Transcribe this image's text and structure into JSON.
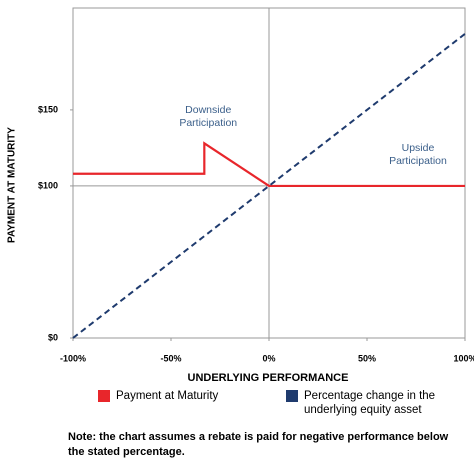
{
  "chart_data": {
    "type": "line",
    "x_label": "UNDERLYING PERFORMANCE",
    "y_label": "PAYMENT AT MATURITY",
    "xlim": [
      -100,
      100
    ],
    "ylim": [
      0,
      217
    ],
    "xticks": [
      {
        "value": -100,
        "label": "-100%"
      },
      {
        "value": -50,
        "label": "-50%"
      },
      {
        "value": 0,
        "label": "0%"
      },
      {
        "value": 50,
        "label": "50%"
      },
      {
        "value": 100,
        "label": "100%"
      }
    ],
    "yticks": [
      {
        "value": 0,
        "label": "$0"
      },
      {
        "value": 100,
        "label": "$100"
      },
      {
        "value": 150,
        "label": "$150"
      }
    ],
    "reference_lines": {
      "x": 0,
      "y": 100
    },
    "series": [
      {
        "name": "Payment at Maturity",
        "color": "#e8262b",
        "style": "solid",
        "x": [
          -100,
          -33,
          -33,
          0,
          100
        ],
        "values": [
          108,
          108,
          128,
          100,
          100
        ]
      },
      {
        "name": "Percentage change in the underlying equity asset",
        "color": "#1f3b6e",
        "style": "dashed",
        "x": [
          -100,
          100
        ],
        "values": [
          0,
          200
        ]
      }
    ],
    "annotations": [
      {
        "lines": [
          "Downside",
          "Participation"
        ],
        "x": -31,
        "y": 150
      },
      {
        "lines": [
          "Upside",
          "Participation"
        ],
        "x": 76,
        "y": 125
      }
    ],
    "note": "Note: the chart assumes a rebate is paid for negative performance below the stated percentage."
  }
}
